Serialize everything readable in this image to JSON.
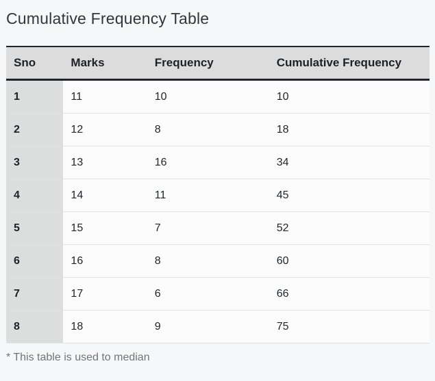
{
  "title": "Cumulative Frequency Table",
  "footnote": "* This table is used to median",
  "colors": {
    "page_background": "#f6f7f8",
    "header_background": "#dcdcdc",
    "sno_column_background": "#dcdddd",
    "cell_background": "#fcfcfd",
    "dark_border": "#212529",
    "row_divider": "#dee2e6",
    "title_text": "#32363b",
    "body_text": "#212529",
    "muted_text": "#70757a"
  },
  "chart_data": {
    "type": "table",
    "title": "Cumulative Frequency Table",
    "columns": [
      "Sno",
      "Marks",
      "Frequency",
      "Cumulative Frequency"
    ],
    "rows": [
      [
        1,
        11,
        10,
        10
      ],
      [
        2,
        12,
        8,
        18
      ],
      [
        3,
        13,
        16,
        34
      ],
      [
        4,
        14,
        11,
        45
      ],
      [
        5,
        15,
        7,
        52
      ],
      [
        6,
        16,
        8,
        60
      ],
      [
        7,
        17,
        6,
        66
      ],
      [
        8,
        18,
        9,
        75
      ]
    ],
    "footnote": "* This table is used to median"
  }
}
